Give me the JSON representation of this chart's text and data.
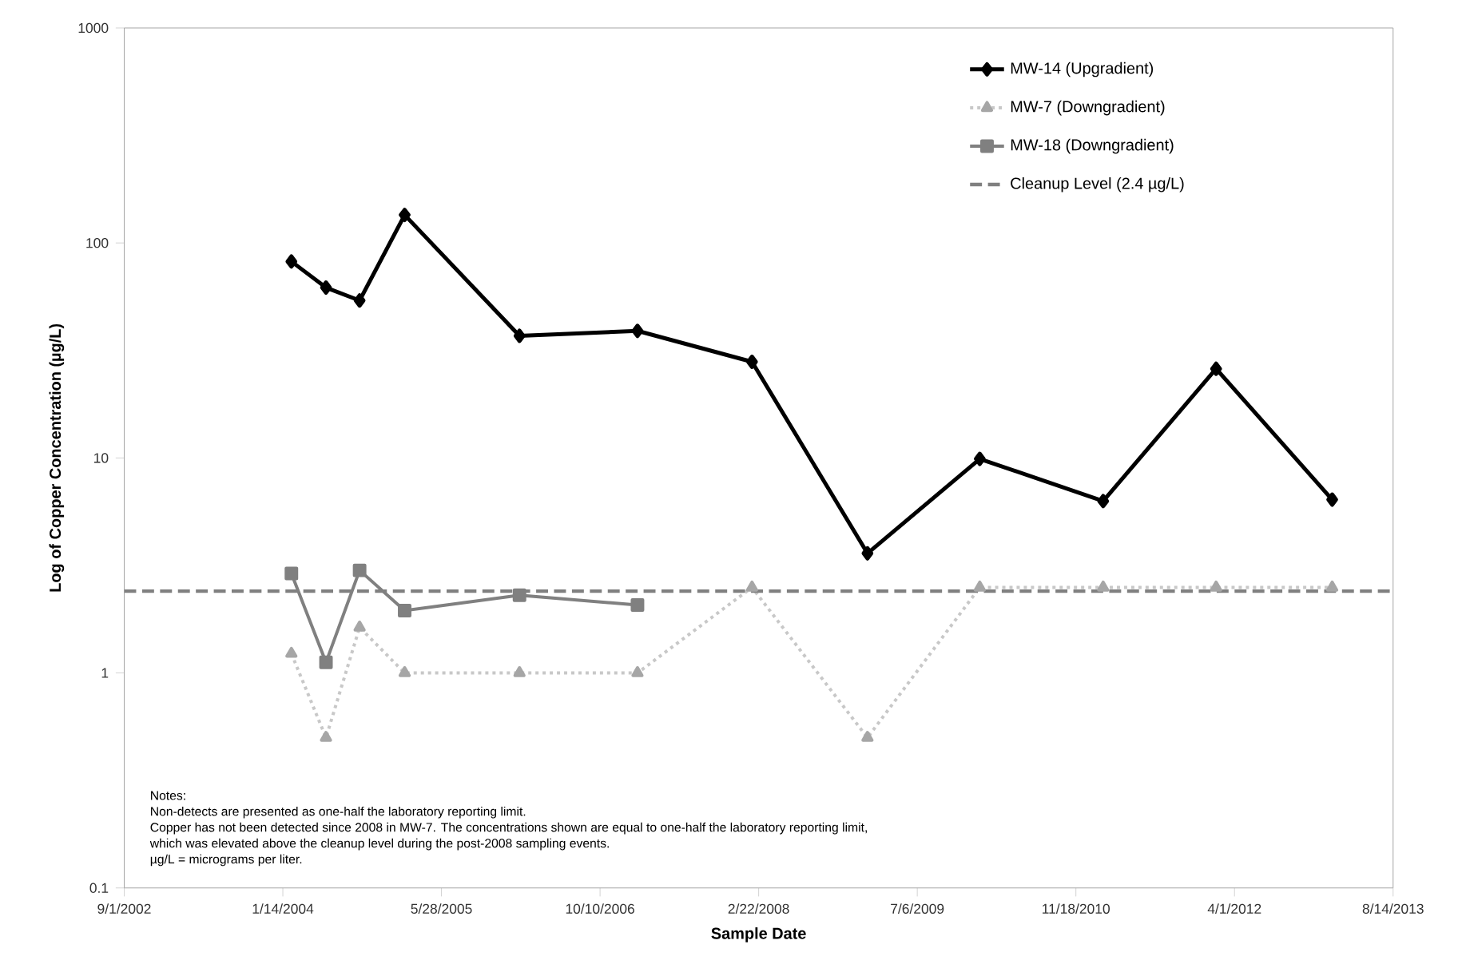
{
  "chart_data": {
    "type": "line",
    "xlabel": "Sample Date",
    "ylabel": "Log of Copper Concentration (µg/L)",
    "x": [
      "2004-02-10",
      "2004-05-29",
      "2004-09-12",
      "2005-02-01",
      "2006-01-29",
      "2007-02-05",
      "2008-02-01",
      "2009-01-30",
      "2010-01-19",
      "2011-02-12",
      "2012-02-03",
      "2013-02-03"
    ],
    "series": [
      {
        "name": "MW-14 (Upgradient)",
        "color": "#000000",
        "marker": "diamond",
        "line_style": "solid",
        "values": [
          82,
          62,
          54,
          135,
          37,
          39,
          28,
          3.6,
          9.9,
          6.3,
          26,
          6.4
        ]
      },
      {
        "name": "MW-7 (Downgradient)",
        "color": "#a6a6a6",
        "marker": "triangle",
        "line_style": "dotted",
        "values": [
          1.23,
          0.5,
          1.63,
          1.0,
          1.0,
          1.0,
          2.5,
          0.5,
          2.5,
          2.5,
          2.5,
          2.5
        ]
      },
      {
        "name": "MW-18 (Downgradient)",
        "color": "#808080",
        "marker": "square",
        "line_style": "solid",
        "values": [
          2.9,
          1.12,
          3.0,
          1.95,
          2.3,
          2.07,
          null,
          null,
          null,
          null,
          null,
          null
        ]
      }
    ],
    "ref_lines": [
      {
        "axis": "y",
        "value": 2.4,
        "label": "Cleanup Level (2.4 µg/L)",
        "color": "#808080",
        "line_style": "dashed"
      }
    ],
    "log": "y",
    "legend": "top right",
    "grid": false,
    "xlim": [
      "2002-09-01",
      "2013-08-14"
    ],
    "xticks": [
      {
        "value": "2002-09-01",
        "label": "9/1/2002"
      },
      {
        "value": "2004-01-14",
        "label": "1/14/2004"
      },
      {
        "value": "2005-05-28",
        "label": "5/28/2005"
      },
      {
        "value": "2006-10-10",
        "label": "10/10/2006"
      },
      {
        "value": "2008-02-22",
        "label": "2/22/2008"
      },
      {
        "value": "2009-07-06",
        "label": "7/6/2009"
      },
      {
        "value": "2010-11-18",
        "label": "11/18/2010"
      },
      {
        "value": "2012-04-01",
        "label": "4/1/2012"
      },
      {
        "value": "2013-08-14",
        "label": "8/14/2013"
      }
    ],
    "ylim": [
      0.1,
      1000
    ],
    "yticks": [
      0.1,
      1,
      10,
      100,
      1000
    ],
    "annotations": [
      "Notes:",
      "Non-detects are presented as one-half the laboratory reporting limit.",
      "Copper has not been detected since 2008 in MW-7. The concentrations shown are equal to one-half the laboratory reporting limit,",
      "which was elevated above the cleanup level during the post-2008 sampling events.",
      "µg/L = micrograms per liter."
    ]
  }
}
